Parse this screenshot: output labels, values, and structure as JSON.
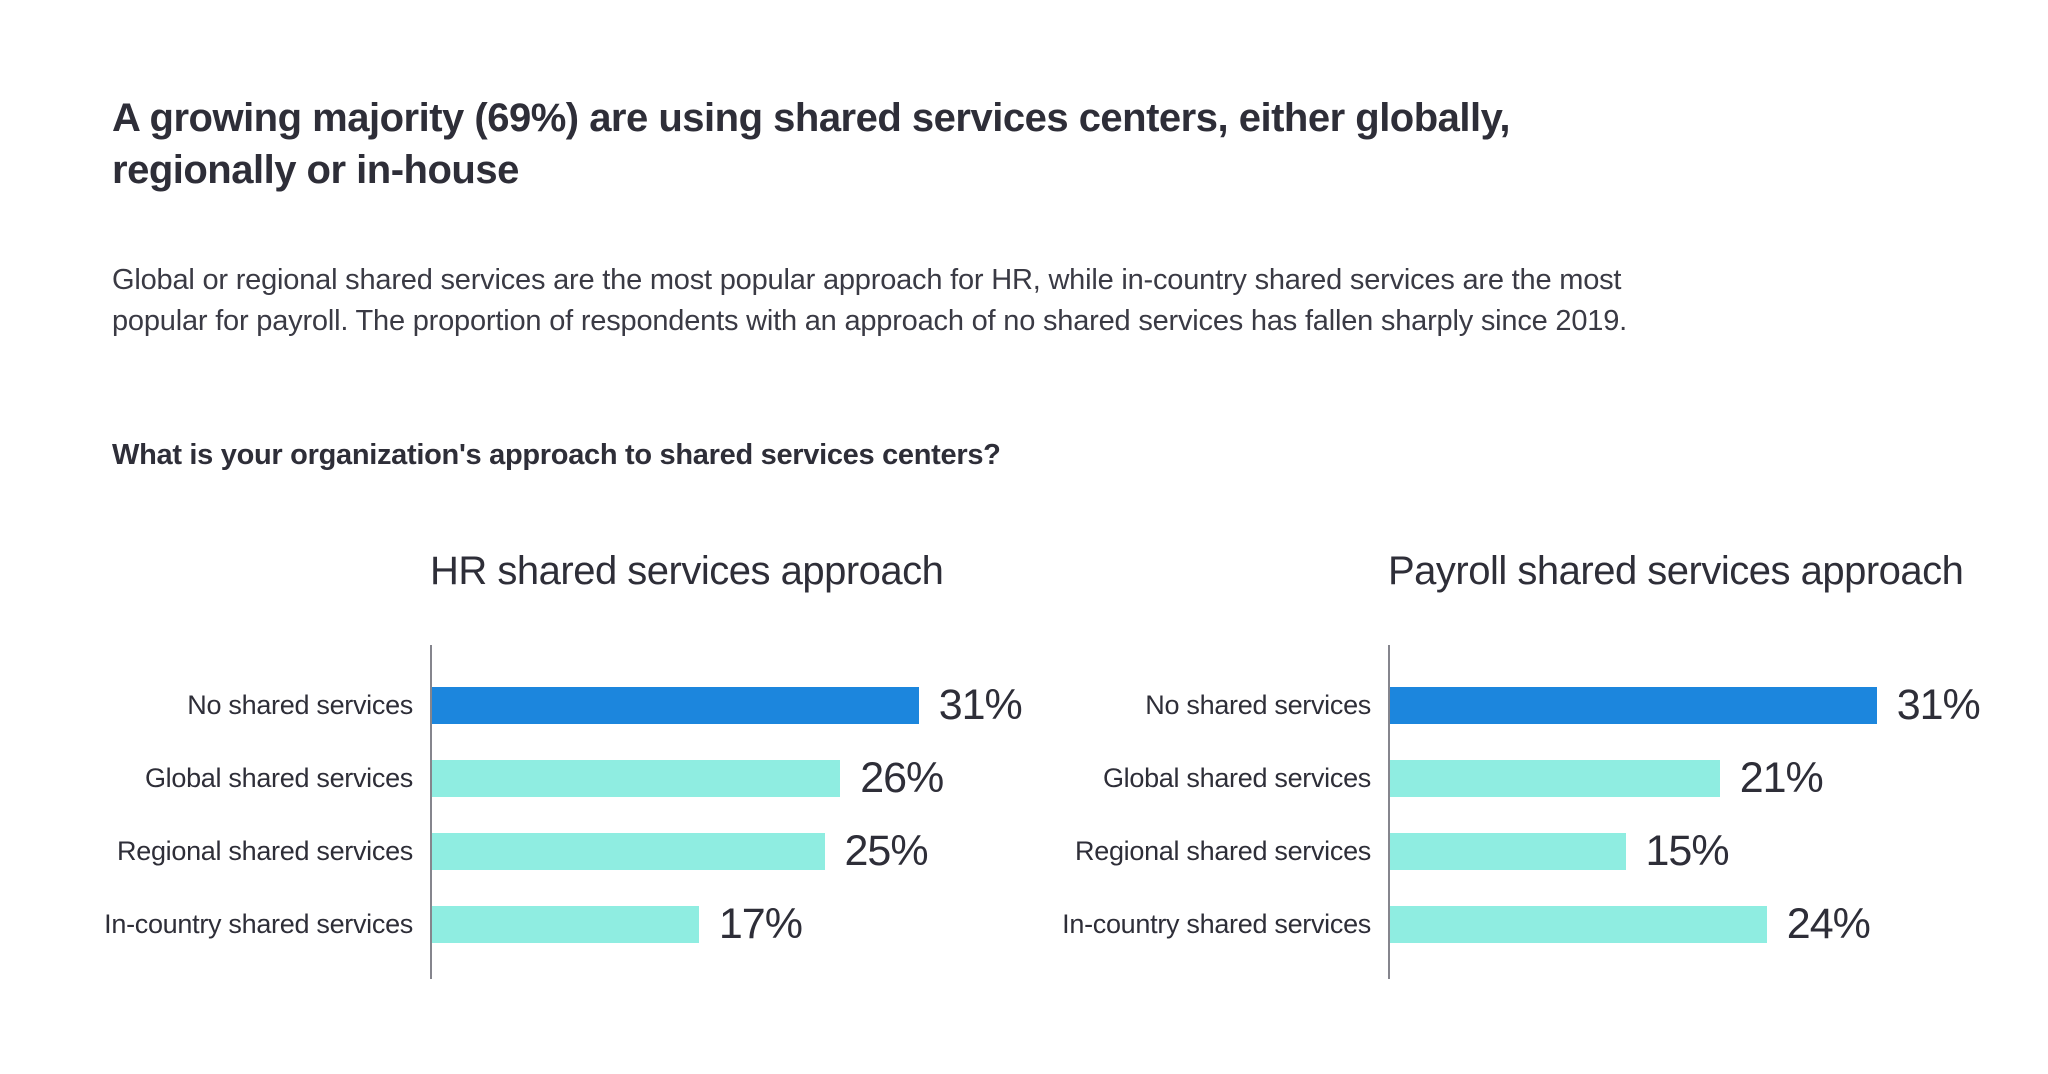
{
  "page": {
    "heading_lines": [
      "A growing majority (69%) are using shared services centers, either globally,",
      "regionally or in-house"
    ],
    "description_lines": [
      "Global or regional shared services are the most popular approach for HR, while in-country shared services are the most",
      "popular for payroll. The proportion of respondents with an approach of no shared services has fallen sharply since 2019."
    ],
    "question": "What is your organization's approach to shared services centers?"
  },
  "colors": {
    "highlight_bar_blue": "#1C86DD",
    "default_bar_teal": "#8FEDE1",
    "heading_text": "#2E2E38",
    "body_text": "#3A3A44",
    "axis_line": "#85858D"
  },
  "chart_data": [
    {
      "type": "bar",
      "orientation": "horizontal",
      "title": "HR shared services approach",
      "categories": [
        "No shared services",
        "Global shared services",
        "Regional shared services",
        "In-country shared services"
      ],
      "values": [
        31,
        26,
        25,
        17
      ],
      "value_labels": [
        "31%",
        "26%",
        "25%",
        "17%"
      ],
      "bar_colors": [
        "#1C86DD",
        "#8FEDE1",
        "#8FEDE1",
        "#8FEDE1"
      ],
      "xlim": [
        0,
        40
      ],
      "xlabel": "",
      "ylabel": "",
      "grid": false,
      "legend_position": "none",
      "data_labels": "outside-end"
    },
    {
      "type": "bar",
      "orientation": "horizontal",
      "title": "Payroll shared services approach",
      "categories": [
        "No shared services",
        "Global shared services",
        "Regional shared services",
        "In-country shared services"
      ],
      "values": [
        31,
        21,
        15,
        24
      ],
      "value_labels": [
        "31%",
        "21%",
        "15%",
        "24%"
      ],
      "bar_colors": [
        "#1C86DD",
        "#8FEDE1",
        "#8FEDE1",
        "#8FEDE1"
      ],
      "xlim": [
        0,
        40
      ],
      "xlabel": "",
      "ylabel": "",
      "grid": false,
      "legend_position": "none",
      "data_labels": "outside-end"
    }
  ]
}
